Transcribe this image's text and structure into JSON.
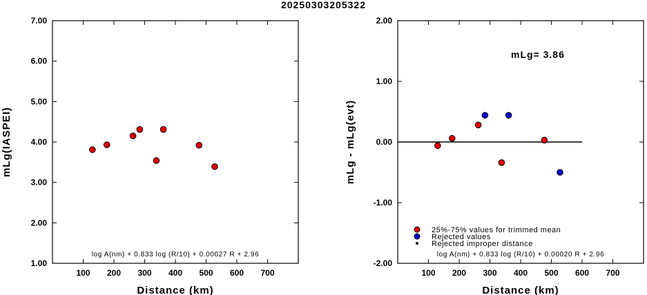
{
  "title": "20250303205322",
  "colors": {
    "accepted": "#e00000",
    "rejected": "#0000d0",
    "improper": "#000000"
  },
  "chart_data": [
    {
      "type": "scatter",
      "xlabel": "Distance (km)",
      "ylabel": "mLg(IASPEI)",
      "xlim": [
        0,
        800
      ],
      "ylim": [
        1.0,
        7.0
      ],
      "x_ticks": [
        100,
        200,
        300,
        400,
        500,
        600,
        700
      ],
      "y_ticks": [
        1.0,
        2.0,
        3.0,
        4.0,
        5.0,
        6.0,
        7.0
      ],
      "x_tick_labels": [
        "100",
        "200",
        "300",
        "400",
        "500",
        "600",
        "700"
      ],
      "y_tick_labels": [
        "1.00",
        "2.00",
        "3.00",
        "4.00",
        "5.00",
        "6.00",
        "7.00"
      ],
      "formula": "log A(nm) + 0.833 log (R/10) + 0.00027 R + 2.96",
      "points": [
        {
          "x": 130,
          "y": 3.81,
          "group": "accepted"
        },
        {
          "x": 177,
          "y": 3.93,
          "group": "accepted"
        },
        {
          "x": 262,
          "y": 4.15,
          "group": "accepted"
        },
        {
          "x": 284,
          "y": 4.31,
          "group": "accepted"
        },
        {
          "x": 338,
          "y": 3.54,
          "group": "accepted"
        },
        {
          "x": 361,
          "y": 4.31,
          "group": "accepted"
        },
        {
          "x": 477,
          "y": 3.92,
          "group": "accepted"
        },
        {
          "x": 528,
          "y": 3.39,
          "group": "accepted"
        }
      ]
    },
    {
      "type": "scatter",
      "xlabel": "Distance (km)",
      "ylabel": "mLg - mLg(evt)",
      "xlim": [
        0,
        800
      ],
      "ylim": [
        -2.0,
        2.0
      ],
      "x_ticks": [
        100,
        200,
        300,
        400,
        500,
        600,
        700
      ],
      "y_ticks": [
        -2.0,
        -1.0,
        0.0,
        1.0,
        2.0
      ],
      "x_tick_labels": [
        "100",
        "200",
        "300",
        "400",
        "500",
        "600",
        "700"
      ],
      "y_tick_labels": [
        "-2.00",
        "-1.00",
        "0.00",
        "1.00",
        "2.00"
      ],
      "annotation": "mLg= 3.86",
      "reference_line": {
        "y": 0.0,
        "x_from": 0,
        "x_to": 600
      },
      "formula": "log A(nm) + 0.833 log (R/10) + 0.00020 R  + 2.96",
      "legend": {
        "placement": "bottom-left",
        "entries": [
          {
            "label": "25%-75% values for trimmed mean",
            "group": "accepted"
          },
          {
            "label": "Rejected values",
            "group": "rejected"
          },
          {
            "label": "Rejected improper distance",
            "group": "improper"
          }
        ]
      },
      "points": [
        {
          "x": 130,
          "y": -0.06,
          "group": "accepted"
        },
        {
          "x": 177,
          "y": 0.06,
          "group": "accepted"
        },
        {
          "x": 262,
          "y": 0.28,
          "group": "accepted"
        },
        {
          "x": 284,
          "y": 0.44,
          "group": "rejected"
        },
        {
          "x": 338,
          "y": -0.34,
          "group": "accepted"
        },
        {
          "x": 361,
          "y": 0.44,
          "group": "rejected"
        },
        {
          "x": 477,
          "y": 0.03,
          "group": "accepted"
        },
        {
          "x": 528,
          "y": -0.5,
          "group": "rejected"
        }
      ]
    }
  ]
}
